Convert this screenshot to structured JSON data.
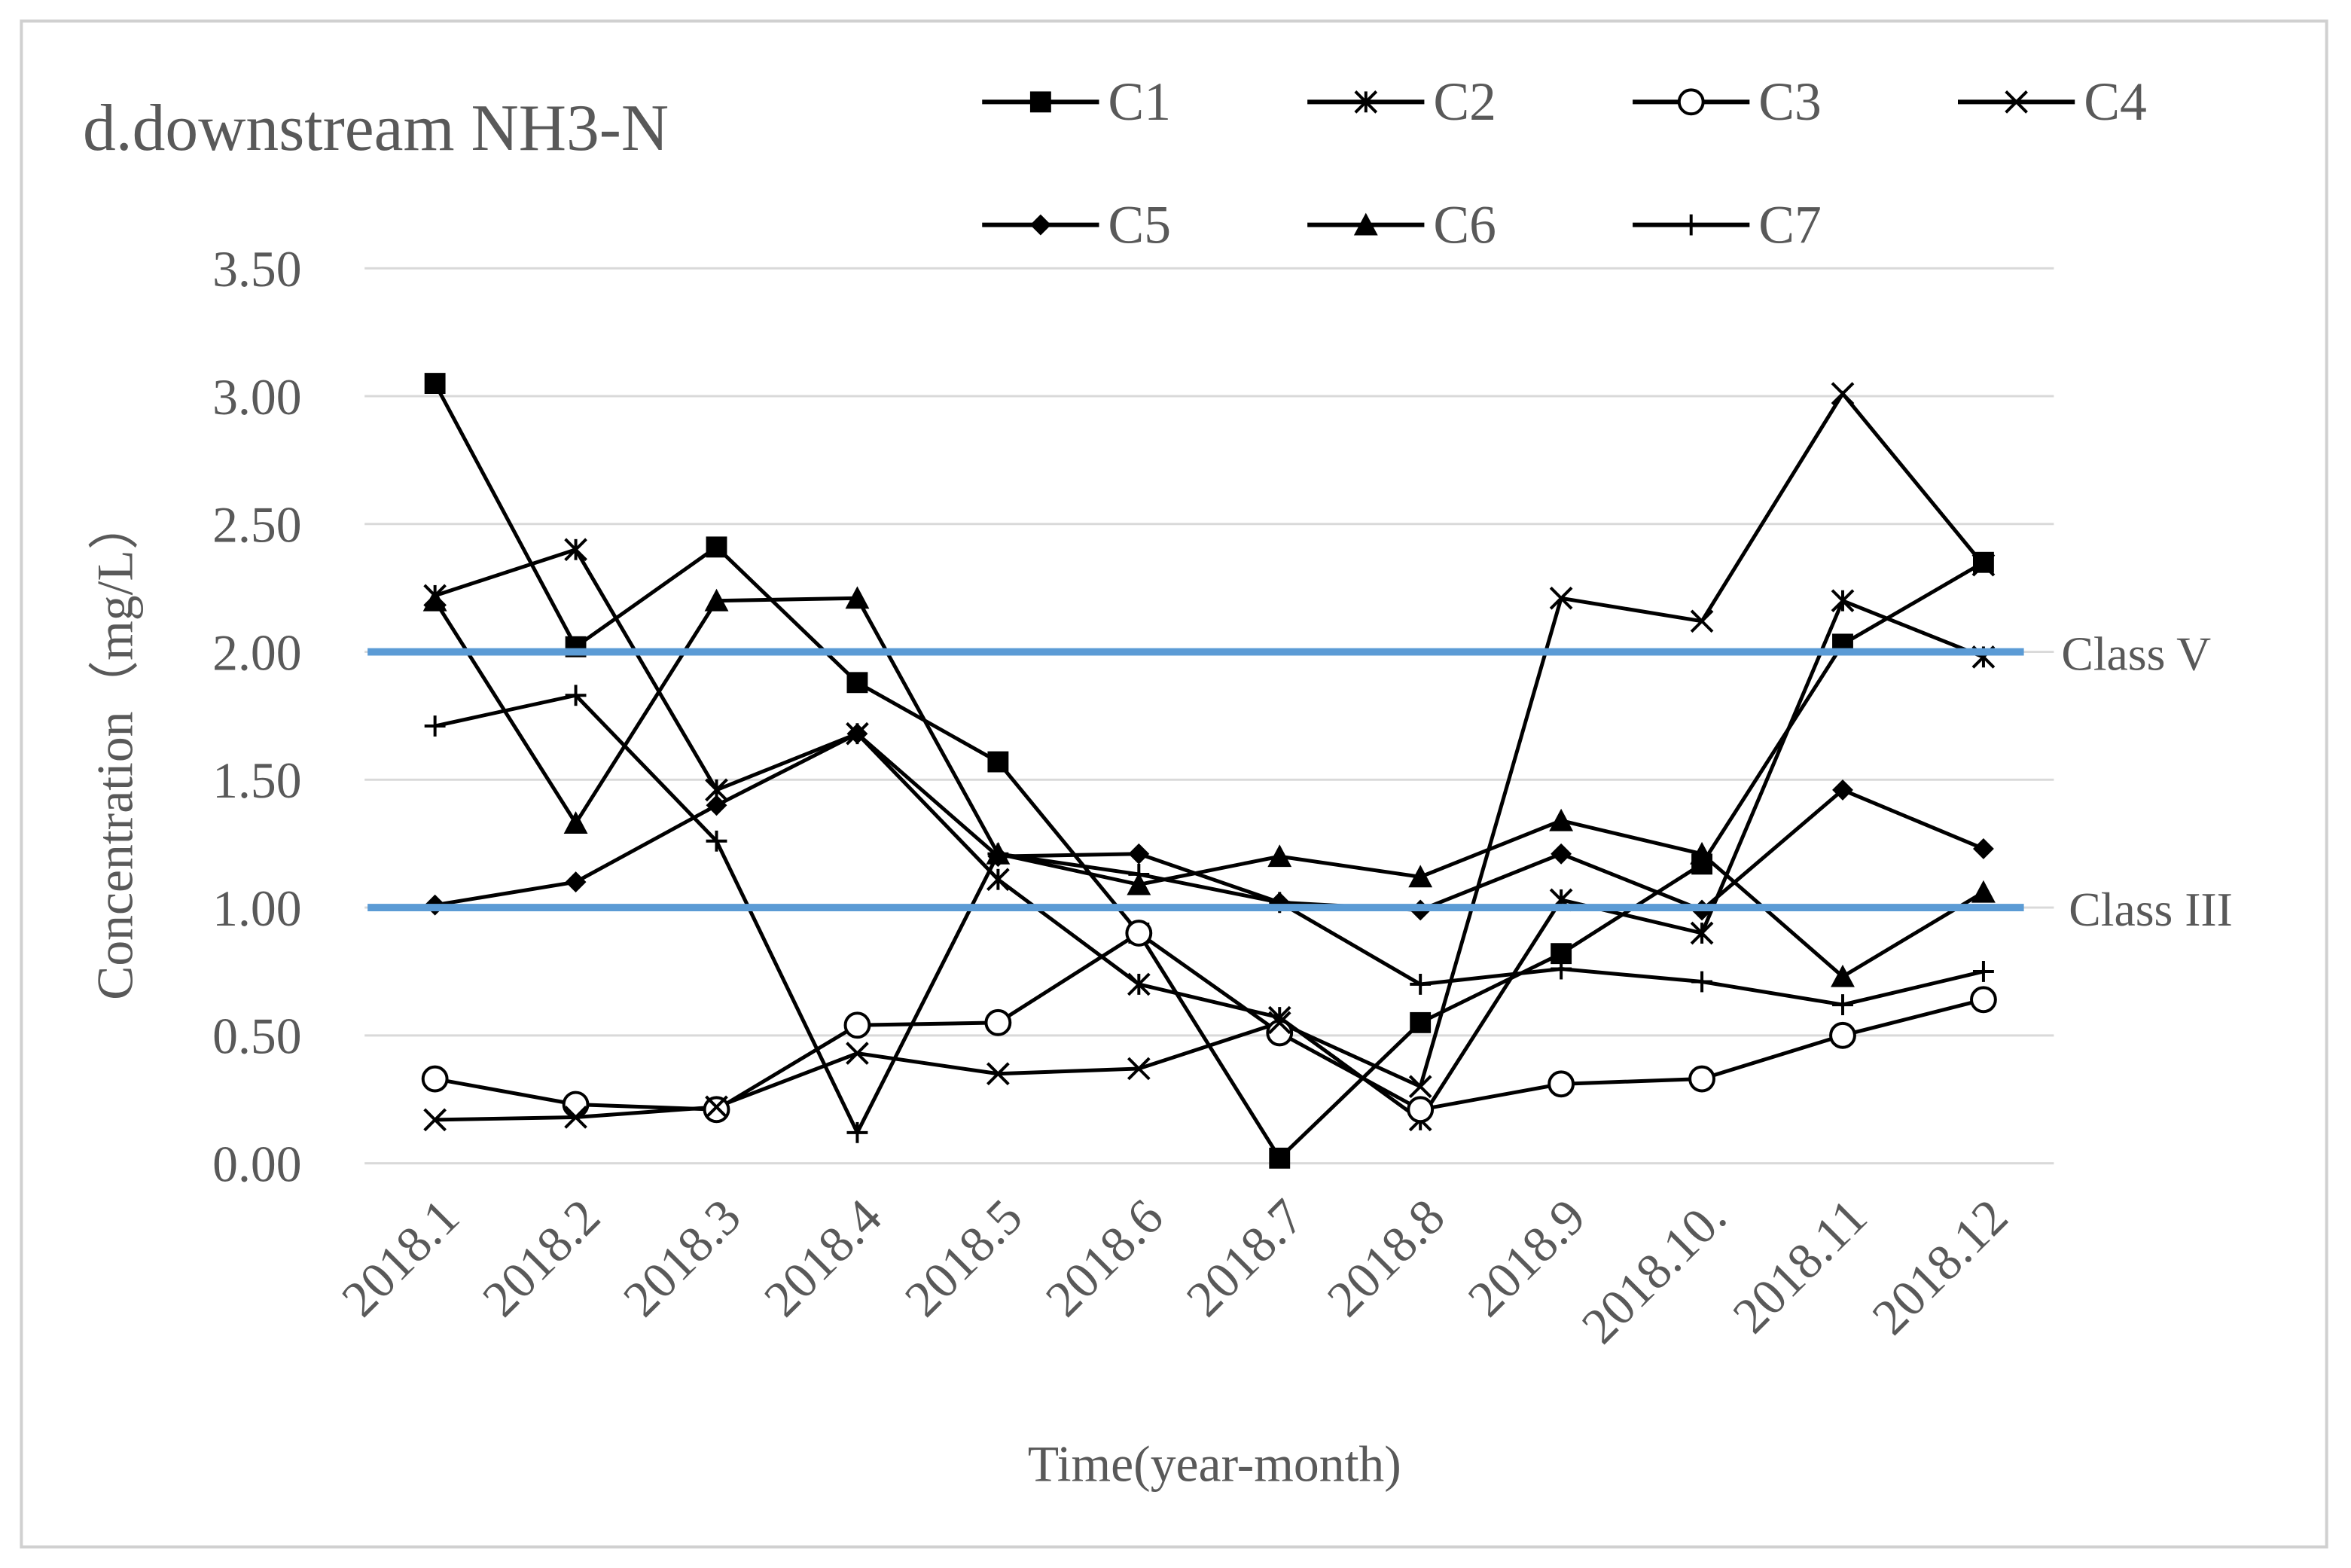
{
  "chart_data": {
    "type": "line",
    "title": "d.downstream  NH3-N",
    "x_label": "Time(year-month)",
    "y_label": "Concentration（mg/L）",
    "categories": [
      "2018.1",
      "2018.2",
      "2018.3",
      "2018.4",
      "2018.5",
      "2018.6",
      "2018.7",
      "2018.8",
      "2018.9",
      "2018.10.",
      "2018.11",
      "2018.12"
    ],
    "series": [
      {
        "name": "C1",
        "color": "#000000",
        "marker": "square",
        "values": [
          3.05,
          2.02,
          2.41,
          1.88,
          1.57,
          0.9,
          0.02,
          0.55,
          0.82,
          1.17,
          2.03,
          2.35
        ]
      },
      {
        "name": "C2",
        "color": "#000000",
        "marker": "asterisk",
        "values": [
          2.22,
          2.4,
          1.46,
          1.68,
          1.11,
          0.7,
          0.57,
          0.17,
          1.03,
          0.9,
          2.2,
          1.98
        ]
      },
      {
        "name": "C3",
        "color": "#000000",
        "marker": "circle",
        "values": [
          0.33,
          0.23,
          0.21,
          0.54,
          0.55,
          0.9,
          0.51,
          0.21,
          0.31,
          0.33,
          0.5,
          0.64
        ]
      },
      {
        "name": "C4",
        "color": "#000000",
        "marker": "x",
        "values": [
          0.17,
          0.18,
          0.22,
          0.43,
          0.35,
          0.37,
          0.55,
          0.3,
          2.21,
          2.12,
          3.01,
          2.34
        ]
      },
      {
        "name": "C5",
        "color": "#000000",
        "marker": "diamond",
        "values": [
          1.01,
          1.1,
          1.4,
          1.68,
          1.2,
          1.21,
          1.02,
          0.99,
          1.21,
          0.99,
          1.46,
          1.23
        ]
      },
      {
        "name": "C6",
        "color": "#000000",
        "marker": "triangle",
        "values": [
          2.2,
          1.33,
          2.2,
          2.21,
          1.21,
          1.09,
          1.2,
          1.12,
          1.34,
          1.21,
          0.73,
          1.06
        ]
      },
      {
        "name": "C7",
        "color": "#000000",
        "marker": "plus",
        "values": [
          1.71,
          1.83,
          1.26,
          0.12,
          1.21,
          1.13,
          1.02,
          0.7,
          0.76,
          0.71,
          0.62,
          0.75
        ]
      }
    ],
    "reference_lines": [
      {
        "value": 2.0,
        "label": "Class V",
        "color": "#5b9bd5"
      },
      {
        "value": 1.0,
        "label": "Class III",
        "color": "#5b9bd5"
      }
    ],
    "ylim": [
      0,
      3.5
    ],
    "yticks": [
      {
        "value": 0,
        "label": "0.00"
      },
      {
        "value": 0.5,
        "label": "0.50"
      },
      {
        "value": 1,
        "label": "1.00"
      },
      {
        "value": 1.5,
        "label": "1.50"
      },
      {
        "value": 2,
        "label": "2.00"
      },
      {
        "value": 2.5,
        "label": "2.50"
      },
      {
        "value": 3,
        "label": "3.00"
      },
      {
        "value": 3.5,
        "label": "3.50"
      }
    ],
    "grid": true
  }
}
